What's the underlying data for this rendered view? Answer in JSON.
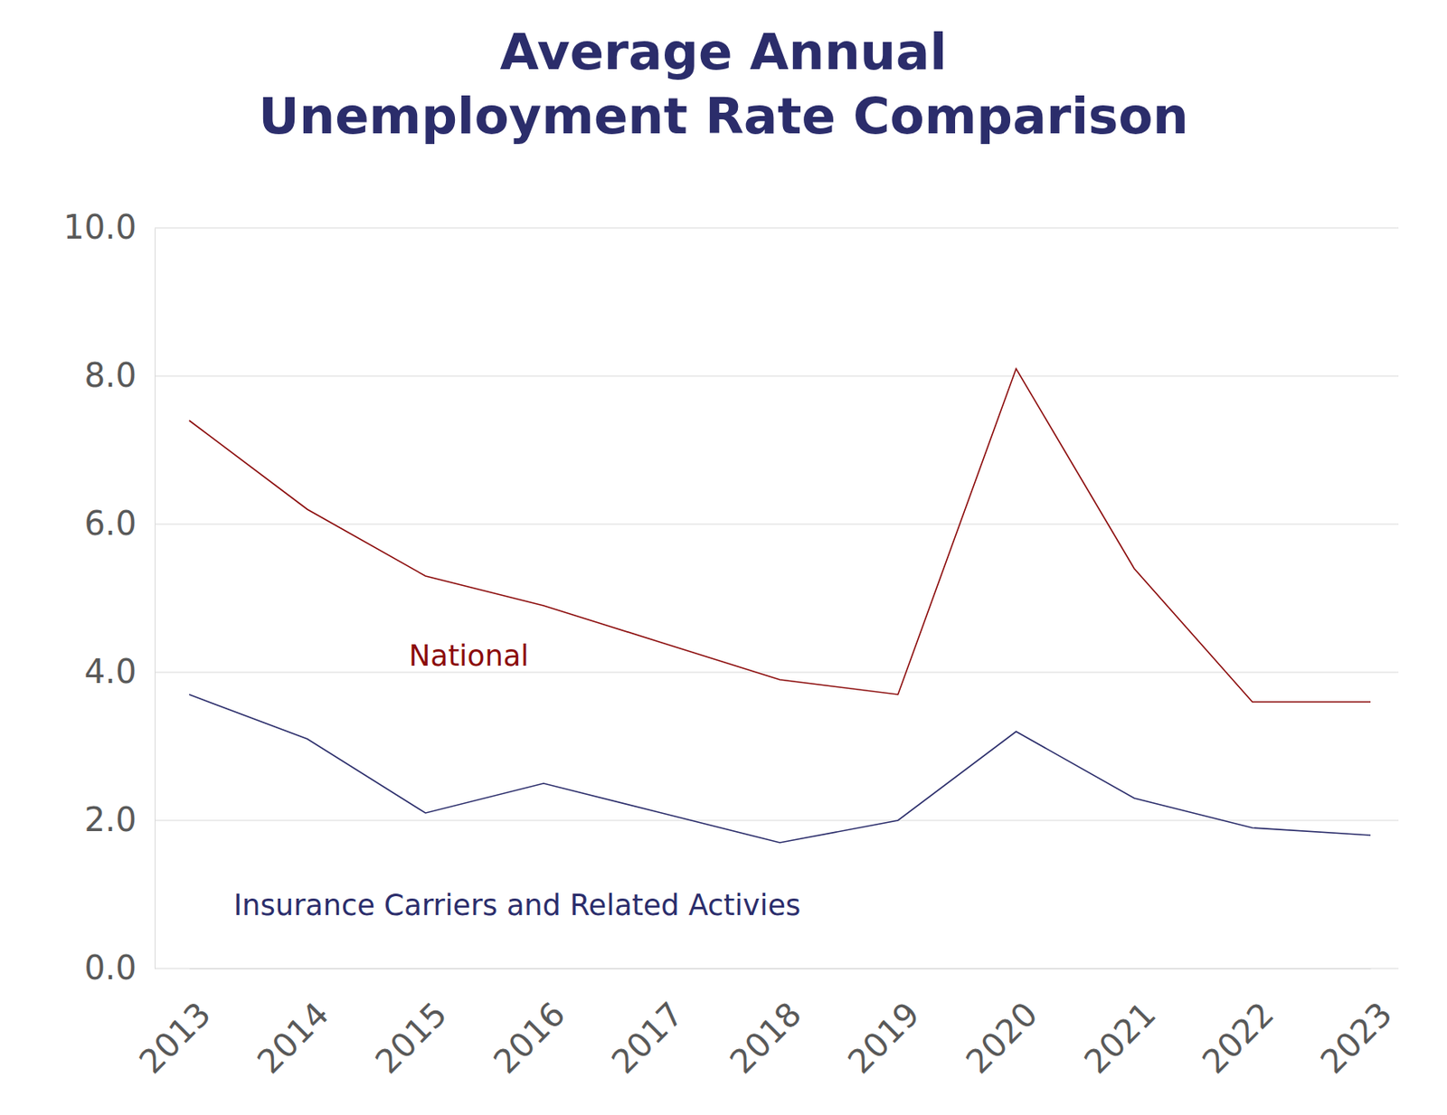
{
  "chart_data": {
    "type": "line",
    "title": "Average Annual\nUnemployment Rate Comparison",
    "categories": [
      "2013",
      "2014",
      "2015",
      "2016",
      "2017",
      "2018",
      "2019",
      "2020",
      "2021",
      "2022",
      "2023"
    ],
    "series": [
      {
        "name": "National",
        "color": "#8b0a0a",
        "values": [
          7.4,
          6.2,
          5.3,
          4.9,
          4.4,
          3.9,
          3.7,
          8.1,
          5.4,
          3.6,
          3.6
        ]
      },
      {
        "name": "Insurance Carriers and Related Activies",
        "color": "#2b2d6b",
        "values": [
          3.7,
          3.1,
          2.1,
          2.5,
          2.1,
          1.7,
          2.0,
          3.2,
          2.3,
          1.9,
          1.8
        ]
      }
    ],
    "ylim": [
      0,
      10
    ],
    "yticks": [
      {
        "value": 0,
        "label": "0.0"
      },
      {
        "value": 2,
        "label": "2.0"
      },
      {
        "value": 4,
        "label": "4.0"
      },
      {
        "value": 6,
        "label": "6.0"
      },
      {
        "value": 8,
        "label": "8.0"
      },
      {
        "value": 10,
        "label": "10.0"
      }
    ],
    "grid": true
  }
}
